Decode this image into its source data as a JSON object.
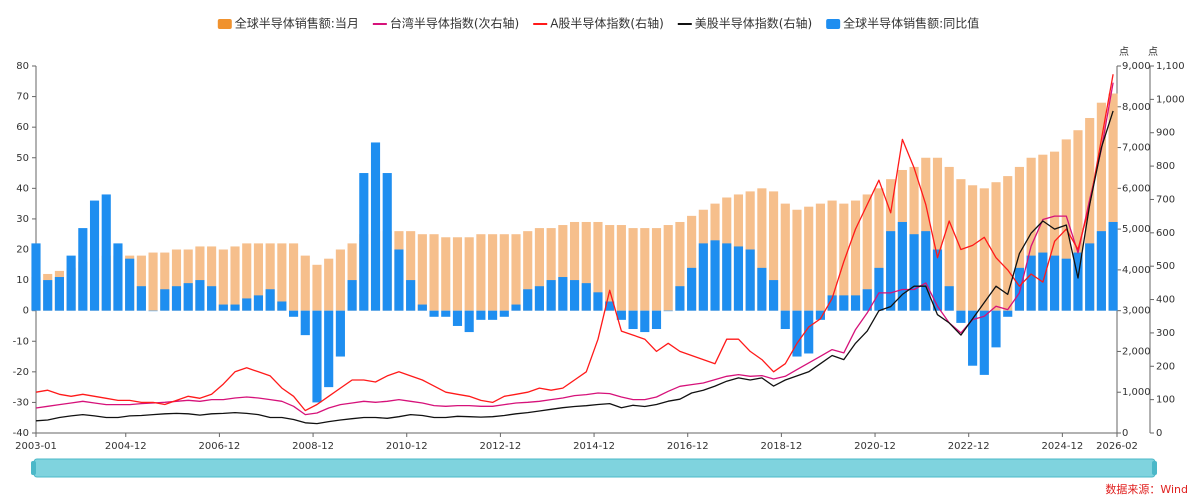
{
  "chart_data": {
    "type": "combo",
    "x": [
      "2003-01",
      "2003-04",
      "2003-07",
      "2003-10",
      "2004-01",
      "2004-04",
      "2004-07",
      "2004-10",
      "2005-01",
      "2005-04",
      "2005-07",
      "2005-10",
      "2006-01",
      "2006-04",
      "2006-07",
      "2006-10",
      "2007-01",
      "2007-04",
      "2007-07",
      "2007-10",
      "2008-01",
      "2008-04",
      "2008-07",
      "2008-10",
      "2009-01",
      "2009-04",
      "2009-07",
      "2009-10",
      "2010-01",
      "2010-04",
      "2010-07",
      "2010-10",
      "2011-01",
      "2011-04",
      "2011-07",
      "2011-10",
      "2012-01",
      "2012-04",
      "2012-07",
      "2012-10",
      "2013-01",
      "2013-04",
      "2013-07",
      "2013-10",
      "2014-01",
      "2014-04",
      "2014-07",
      "2014-10",
      "2015-01",
      "2015-04",
      "2015-07",
      "2015-10",
      "2016-01",
      "2016-04",
      "2016-07",
      "2016-10",
      "2017-01",
      "2017-04",
      "2017-07",
      "2017-10",
      "2018-01",
      "2018-04",
      "2018-07",
      "2018-10",
      "2019-01",
      "2019-04",
      "2019-07",
      "2019-10",
      "2020-01",
      "2020-04",
      "2020-07",
      "2020-10",
      "2021-01",
      "2021-04",
      "2021-07",
      "2021-10",
      "2022-01",
      "2022-04",
      "2022-07",
      "2022-10",
      "2023-01",
      "2023-04",
      "2023-07",
      "2023-10",
      "2024-01",
      "2024-04",
      "2024-07",
      "2024-10",
      "2025-01",
      "2025-04",
      "2025-07",
      "2025-10",
      "2026-01"
    ],
    "xlim": [
      "2003-01",
      "2026-02"
    ],
    "xticks": [
      "2003-01",
      "2004-12",
      "2006-12",
      "2008-12",
      "2010-12",
      "2012-12",
      "2014-12",
      "2016-12",
      "2018-12",
      "2020-12",
      "2022-12",
      "2024-12",
      "2026-02"
    ],
    "ylim": [
      -40,
      80
    ],
    "yticks": [
      -40,
      -30,
      -20,
      -10,
      0,
      10,
      20,
      30,
      40,
      50,
      60,
      70,
      80
    ],
    "y2lim": [
      0,
      9000
    ],
    "y2ticks": [
      0,
      {
        "value": 1000,
        "label": "1,000"
      },
      {
        "value": 2000,
        "label": "2,000"
      },
      {
        "value": 3000,
        "label": "3,000"
      },
      {
        "value": 4000,
        "label": "4,000"
      },
      {
        "value": 5000,
        "label": "5,000"
      },
      {
        "value": 6000,
        "label": "6,000"
      },
      {
        "value": 7000,
        "label": "7,000"
      },
      {
        "value": 8000,
        "label": "8,000"
      },
      {
        "value": 9000,
        "label": "9,000"
      }
    ],
    "y2_unit": "点",
    "y3lim": [
      0,
      1100
    ],
    "y3ticks": [
      0,
      100,
      200,
      300,
      400,
      500,
      600,
      700,
      800,
      900,
      {
        "value": 1000,
        "label": "1,000"
      },
      {
        "value": 1100,
        "label": "1,100"
      }
    ],
    "y3_unit": "点",
    "grid": false,
    "source": "数据来源：Wind",
    "series": [
      {
        "name": "全球半导体销售额:当月",
        "type": "bar",
        "color": "#f6bf8c",
        "legend_color": "#f0922e",
        "axis": "y",
        "values": [
          11,
          12,
          13,
          14,
          16,
          17,
          18,
          18,
          18,
          18,
          19,
          19,
          20,
          20,
          21,
          21,
          20,
          21,
          22,
          22,
          22,
          22,
          22,
          18,
          15,
          17,
          20,
          22,
          25,
          26,
          26,
          26,
          26,
          25,
          25,
          24,
          24,
          24,
          25,
          25,
          25,
          25,
          26,
          27,
          27,
          28,
          29,
          29,
          29,
          28,
          28,
          27,
          27,
          27,
          28,
          29,
          31,
          33,
          35,
          37,
          38,
          39,
          40,
          39,
          35,
          33,
          34,
          35,
          36,
          35,
          36,
          38,
          40,
          43,
          46,
          47,
          50,
          50,
          47,
          43,
          41,
          40,
          42,
          44,
          47,
          50,
          51,
          52,
          56,
          59,
          63,
          68,
          71
        ]
      },
      {
        "name": "台湾半导体指数(次右轴)",
        "type": "line",
        "color": "#d6127a",
        "axis": "y3",
        "values": [
          75,
          80,
          85,
          90,
          95,
          90,
          85,
          85,
          85,
          88,
          90,
          92,
          95,
          98,
          95,
          100,
          100,
          105,
          108,
          105,
          100,
          95,
          80,
          55,
          60,
          75,
          85,
          90,
          95,
          92,
          95,
          100,
          95,
          90,
          82,
          80,
          82,
          82,
          80,
          80,
          85,
          90,
          92,
          95,
          100,
          105,
          112,
          115,
          120,
          118,
          108,
          100,
          100,
          108,
          125,
          140,
          145,
          150,
          160,
          170,
          175,
          170,
          172,
          162,
          170,
          190,
          210,
          230,
          250,
          240,
          310,
          360,
          420,
          420,
          430,
          430,
          450,
          380,
          330,
          300,
          340,
          350,
          380,
          370,
          420,
          560,
          640,
          650,
          650,
          540,
          700,
          850,
          1050
        ]
      },
      {
        "name": "A股半导体指数(右轴)",
        "type": "line",
        "color": "#ff1a1a",
        "axis": "y2",
        "values": [
          1000,
          1050,
          950,
          900,
          950,
          900,
          850,
          800,
          800,
          750,
          750,
          700,
          800,
          900,
          850,
          950,
          1200,
          1500,
          1600,
          1500,
          1400,
          1100,
          900,
          550,
          700,
          900,
          1100,
          1300,
          1300,
          1250,
          1400,
          1500,
          1400,
          1300,
          1150,
          1000,
          950,
          900,
          800,
          750,
          900,
          950,
          1000,
          1100,
          1050,
          1100,
          1300,
          1500,
          2300,
          3500,
          2500,
          2400,
          2300,
          2000,
          2200,
          2000,
          1900,
          1800,
          1700,
          2300,
          2300,
          2000,
          1800,
          1500,
          1700,
          2200,
          2600,
          2800,
          3300,
          4200,
          5000,
          5600,
          6200,
          5400,
          7200,
          6500,
          5600,
          4300,
          5200,
          4500,
          4600,
          4800,
          4300,
          4000,
          3600,
          3900,
          3700,
          4700,
          5000,
          4500,
          5600,
          7200,
          8800
        ]
      },
      {
        "name": "美股半导体指数(右轴)",
        "type": "line",
        "color": "#111111",
        "axis": "y2",
        "values": [
          300,
          320,
          380,
          420,
          450,
          420,
          380,
          380,
          420,
          430,
          450,
          470,
          480,
          470,
          440,
          470,
          480,
          500,
          480,
          450,
          380,
          380,
          330,
          250,
          230,
          280,
          320,
          350,
          380,
          380,
          360,
          400,
          450,
          430,
          380,
          380,
          410,
          400,
          390,
          400,
          430,
          470,
          500,
          540,
          580,
          620,
          650,
          670,
          700,
          720,
          620,
          680,
          650,
          700,
          780,
          830,
          980,
          1050,
          1150,
          1270,
          1350,
          1300,
          1350,
          1150,
          1300,
          1400,
          1500,
          1700,
          1900,
          1800,
          2200,
          2500,
          3000,
          3100,
          3400,
          3600,
          3600,
          2900,
          2700,
          2400,
          2800,
          3200,
          3600,
          3400,
          4400,
          4900,
          5200,
          5000,
          5100,
          3800,
          5600,
          7000,
          7900
        ]
      },
      {
        "name": "全球半导体销售额:同比值",
        "type": "bar",
        "color": "#1e8ef0",
        "axis": "y",
        "values": [
          22,
          10,
          11,
          18,
          27,
          36,
          38,
          22,
          17,
          8,
          0,
          7,
          8,
          9,
          10,
          8,
          2,
          2,
          4,
          5,
          7,
          3,
          -2,
          -8,
          -30,
          -25,
          -15,
          10,
          45,
          55,
          45,
          20,
          10,
          2,
          -2,
          -2,
          -5,
          -7,
          -3,
          -3,
          -2,
          2,
          7,
          8,
          10,
          11,
          10,
          9,
          6,
          3,
          -3,
          -6,
          -7,
          -6,
          0,
          8,
          14,
          22,
          23,
          22,
          21,
          20,
          14,
          10,
          -6,
          -15,
          -14,
          -3,
          5,
          5,
          5,
          7,
          14,
          26,
          29,
          25,
          26,
          20,
          8,
          -4,
          -18,
          -21,
          -12,
          -2,
          14,
          18,
          19,
          18,
          17,
          19,
          22,
          26,
          29
        ]
      }
    ]
  }
}
